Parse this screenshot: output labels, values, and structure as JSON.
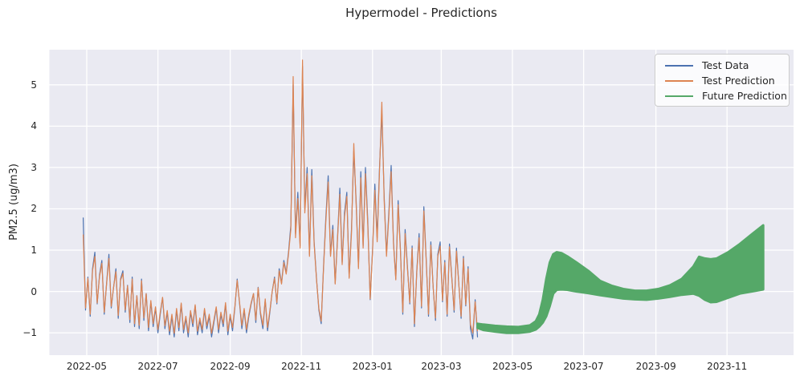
{
  "figure": {
    "title": "Hypermodel - Predictions"
  },
  "chart_data": {
    "type": "line",
    "title": "Hypermodel - Predictions",
    "xlabel": "",
    "ylabel": "PM2.5 (ug/m3)",
    "x_unit": "days since 2022-01-01",
    "xlim": [
      88,
      726
    ],
    "ylim": [
      -1.54,
      5.85
    ],
    "grid": true,
    "legend_position": "upper right",
    "background": "#eaeaf2",
    "grid_color": "#ffffff",
    "text_color": "#262626",
    "colors": {
      "test_data": "#4c72b0",
      "test_prediction": "#dd8452",
      "future_prediction": "#55a868"
    },
    "legend": [
      "Test Data",
      "Test Prediction",
      "Future Prediction"
    ],
    "x_ticks": [
      {
        "day": 120,
        "label": "2022-05"
      },
      {
        "day": 181,
        "label": "2022-07"
      },
      {
        "day": 243,
        "label": "2022-09"
      },
      {
        "day": 304,
        "label": "2022-11"
      },
      {
        "day": 365,
        "label": "2023-01"
      },
      {
        "day": 424,
        "label": "2023-03"
      },
      {
        "day": 485,
        "label": "2023-05"
      },
      {
        "day": 546,
        "label": "2023-07"
      },
      {
        "day": 608,
        "label": "2023-09"
      },
      {
        "day": 669,
        "label": "2023-11"
      }
    ],
    "y_ticks": [
      {
        "value": -1,
        "label": "−1"
      },
      {
        "value": 0,
        "label": "0"
      },
      {
        "value": 1,
        "label": "1"
      },
      {
        "value": 2,
        "label": "2"
      },
      {
        "value": 3,
        "label": "3"
      },
      {
        "value": 4,
        "label": "4"
      },
      {
        "value": 5,
        "label": "5"
      }
    ],
    "series": [
      {
        "name": "Test Data",
        "type": "line",
        "color_key": "test_data",
        "x_start": 117,
        "x_step": 2,
        "values": [
          1.78,
          -0.45,
          0.35,
          -0.6,
          0.55,
          0.95,
          -0.3,
          0.4,
          0.75,
          -0.55,
          0.2,
          0.9,
          -0.4,
          0.1,
          0.55,
          -0.65,
          0.3,
          0.5,
          -0.5,
          0.15,
          -0.75,
          0.35,
          -0.85,
          -0.1,
          -0.9,
          0.3,
          -0.7,
          -0.05,
          -0.95,
          -0.25,
          -0.85,
          -0.4,
          -1.0,
          -0.55,
          -0.15,
          -0.9,
          -0.5,
          -1.05,
          -0.6,
          -1.1,
          -0.45,
          -0.95,
          -0.3,
          -1.0,
          -0.65,
          -1.1,
          -0.5,
          -0.85,
          -0.35,
          -1.05,
          -0.7,
          -1.0,
          -0.45,
          -0.9,
          -0.6,
          -1.1,
          -0.75,
          -0.4,
          -1.0,
          -0.55,
          -0.85,
          -0.3,
          -1.05,
          -0.6,
          -0.95,
          -0.4,
          0.3,
          -0.28,
          -0.9,
          -0.45,
          -1.0,
          -0.6,
          -0.3,
          -0.05,
          -0.75,
          0.1,
          -0.55,
          -0.9,
          -0.2,
          -0.95,
          -0.5,
          0.0,
          0.35,
          -0.3,
          0.55,
          0.2,
          0.75,
          0.45,
          0.95,
          1.6,
          5.0,
          1.4,
          2.4,
          1.1,
          5.45,
          2.0,
          3.0,
          0.9,
          2.95,
          1.2,
          0.3,
          -0.45,
          -0.78,
          0.6,
          1.8,
          2.8,
          0.9,
          1.6,
          0.2,
          1.3,
          2.5,
          0.7,
          1.9,
          2.4,
          0.35,
          1.5,
          3.4,
          2.2,
          0.6,
          2.9,
          1.1,
          3.0,
          1.7,
          -0.2,
          1.0,
          2.6,
          1.3,
          3.0,
          4.33,
          2.3,
          0.9,
          1.9,
          3.05,
          1.2,
          0.3,
          2.2,
          1.0,
          -0.55,
          1.5,
          0.6,
          -0.3,
          1.1,
          -0.85,
          0.5,
          1.4,
          -0.4,
          2.05,
          0.8,
          -0.6,
          1.2,
          0.1,
          -0.7,
          0.9,
          1.2,
          -0.25,
          0.75,
          -0.6,
          1.15,
          0.35,
          -0.5,
          1.05,
          0.2,
          -0.65,
          0.85,
          -0.35,
          0.6,
          -0.9,
          -1.15,
          -0.2,
          -1.1
        ]
      },
      {
        "name": "Test Prediction",
        "type": "line",
        "color_key": "test_prediction",
        "x_start": 117,
        "x_step": 2,
        "values": [
          1.37,
          -0.4,
          0.32,
          -0.55,
          0.5,
          0.85,
          -0.28,
          0.36,
          0.68,
          -0.5,
          0.18,
          0.8,
          -0.36,
          0.1,
          0.48,
          -0.58,
          0.27,
          0.44,
          -0.45,
          0.14,
          -0.68,
          0.3,
          -0.78,
          -0.1,
          -0.82,
          0.26,
          -0.64,
          -0.05,
          -0.87,
          -0.22,
          -0.78,
          -0.37,
          -0.92,
          -0.5,
          -0.14,
          -0.83,
          -0.46,
          -0.96,
          -0.55,
          -1.01,
          -0.41,
          -0.87,
          -0.28,
          -0.92,
          -0.6,
          -1.0,
          -0.46,
          -0.78,
          -0.32,
          -0.96,
          -0.64,
          -0.92,
          -0.41,
          -0.83,
          -0.55,
          -1.01,
          -0.69,
          -0.37,
          -0.92,
          -0.5,
          -0.78,
          -0.27,
          -0.96,
          -0.55,
          -0.87,
          -0.37,
          0.27,
          -0.25,
          -0.82,
          -0.41,
          -0.92,
          -0.55,
          -0.27,
          -0.05,
          -0.69,
          0.09,
          -0.5,
          -0.82,
          -0.18,
          -0.87,
          -0.46,
          0.0,
          0.32,
          -0.27,
          0.5,
          0.18,
          0.7,
          0.42,
          0.9,
          1.5,
          5.2,
          1.3,
          2.25,
          1.05,
          5.6,
          1.9,
          2.85,
          0.85,
          2.8,
          1.15,
          0.28,
          -0.41,
          -0.72,
          0.55,
          1.7,
          2.65,
          0.85,
          1.5,
          0.18,
          1.25,
          2.35,
          0.65,
          1.8,
          2.3,
          0.32,
          1.4,
          3.58,
          2.1,
          0.55,
          2.75,
          1.05,
          2.85,
          1.6,
          -0.18,
          0.95,
          2.45,
          1.2,
          2.9,
          4.58,
          2.2,
          0.85,
          1.8,
          2.9,
          1.15,
          0.28,
          2.1,
          0.95,
          -0.5,
          1.4,
          0.55,
          -0.27,
          1.05,
          -0.78,
          0.46,
          1.3,
          -0.36,
          1.95,
          0.75,
          -0.55,
          1.12,
          0.1,
          -0.64,
          0.85,
          1.1,
          -0.22,
          0.7,
          -0.55,
          1.08,
          0.32,
          -0.45,
          0.98,
          0.18,
          -0.6,
          0.8,
          -0.32,
          0.55,
          -0.8,
          -1.0,
          -0.25,
          -0.95
        ]
      },
      {
        "name": "Future Prediction",
        "type": "band",
        "color_key": "future_prediction",
        "x": [
          455,
          460,
          470,
          480,
          490,
          500,
          505,
          508,
          511,
          514,
          517,
          520,
          523,
          527,
          532,
          540,
          550,
          560,
          570,
          580,
          590,
          600,
          610,
          620,
          630,
          640,
          645,
          650,
          655,
          660,
          670,
          680,
          690,
          700
        ],
        "lower": [
          -0.88,
          -0.93,
          -0.97,
          -1.0,
          -1.0,
          -0.97,
          -0.92,
          -0.85,
          -0.75,
          -0.6,
          -0.35,
          -0.05,
          0.04,
          0.05,
          0.04,
          0.0,
          -0.04,
          -0.09,
          -0.13,
          -0.17,
          -0.19,
          -0.2,
          -0.17,
          -0.13,
          -0.08,
          -0.05,
          -0.1,
          -0.2,
          -0.26,
          -0.25,
          -0.15,
          -0.05,
          0.0,
          0.05
        ],
        "upper": [
          -0.78,
          -0.8,
          -0.83,
          -0.85,
          -0.86,
          -0.82,
          -0.72,
          -0.55,
          -0.2,
          0.3,
          0.7,
          0.9,
          0.95,
          0.93,
          0.85,
          0.7,
          0.5,
          0.26,
          0.14,
          0.06,
          0.02,
          0.02,
          0.06,
          0.15,
          0.3,
          0.6,
          0.84,
          0.8,
          0.78,
          0.8,
          0.95,
          1.15,
          1.38,
          1.6
        ]
      }
    ]
  }
}
